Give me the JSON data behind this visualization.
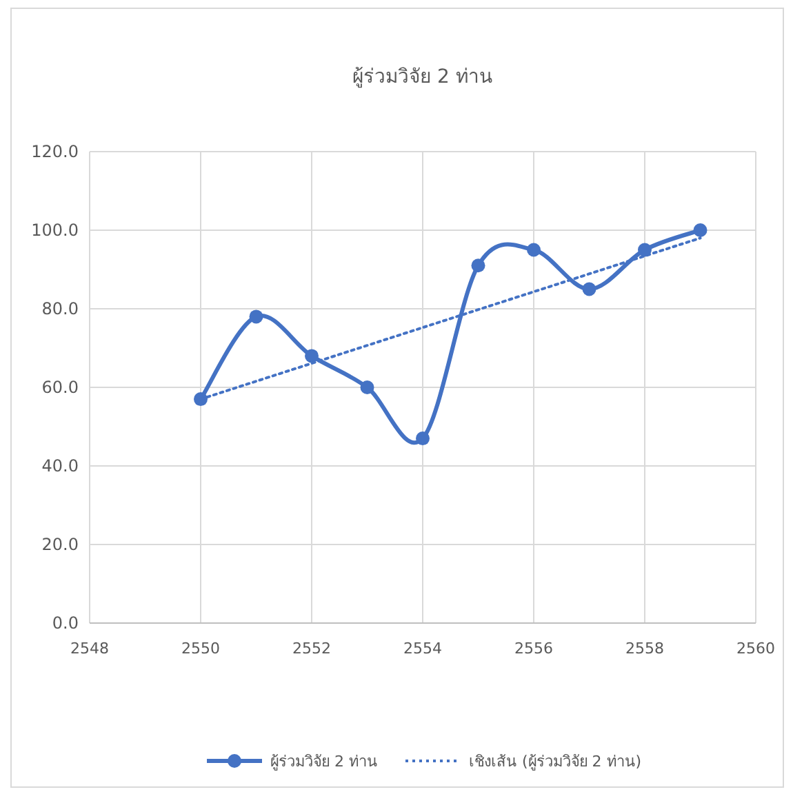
{
  "chart_data": {
    "type": "line",
    "title": "ผู้ร่วมวิจัย 2 ท่าน",
    "xlim": [
      2548,
      2560
    ],
    "xticks": [
      2548,
      2550,
      2552,
      2554,
      2556,
      2558,
      2560
    ],
    "ylim": [
      0,
      120
    ],
    "yticks": [
      {
        "value": 0,
        "label": "0.0"
      },
      {
        "value": 20,
        "label": "20.0"
      },
      {
        "value": 40,
        "label": "40.0"
      },
      {
        "value": 60,
        "label": "60.0"
      },
      {
        "value": 80,
        "label": "80.0"
      },
      {
        "value": 100,
        "label": "100.0"
      },
      {
        "value": 120,
        "label": "120.0"
      }
    ],
    "grid": true,
    "legend": "bottom",
    "marker": "circle",
    "series": [
      {
        "name": "ผู้ร่วมวิจัย 2 ท่าน",
        "color": "#4472c4",
        "x": [
          2550,
          2551,
          2552,
          2553,
          2554,
          2555,
          2556,
          2557,
          2558,
          2559
        ],
        "values": [
          57,
          78,
          68,
          60,
          47,
          91,
          95,
          85,
          95,
          100
        ],
        "line_style": "solid"
      },
      {
        "name": "เชิงเส้น (ผู้ร่วมวิจัย 2 ท่าน)",
        "color": "#4472c4",
        "x": [
          2550,
          2559
        ],
        "values": [
          57,
          98
        ],
        "line_style": "dotted",
        "marker": "none"
      }
    ]
  }
}
